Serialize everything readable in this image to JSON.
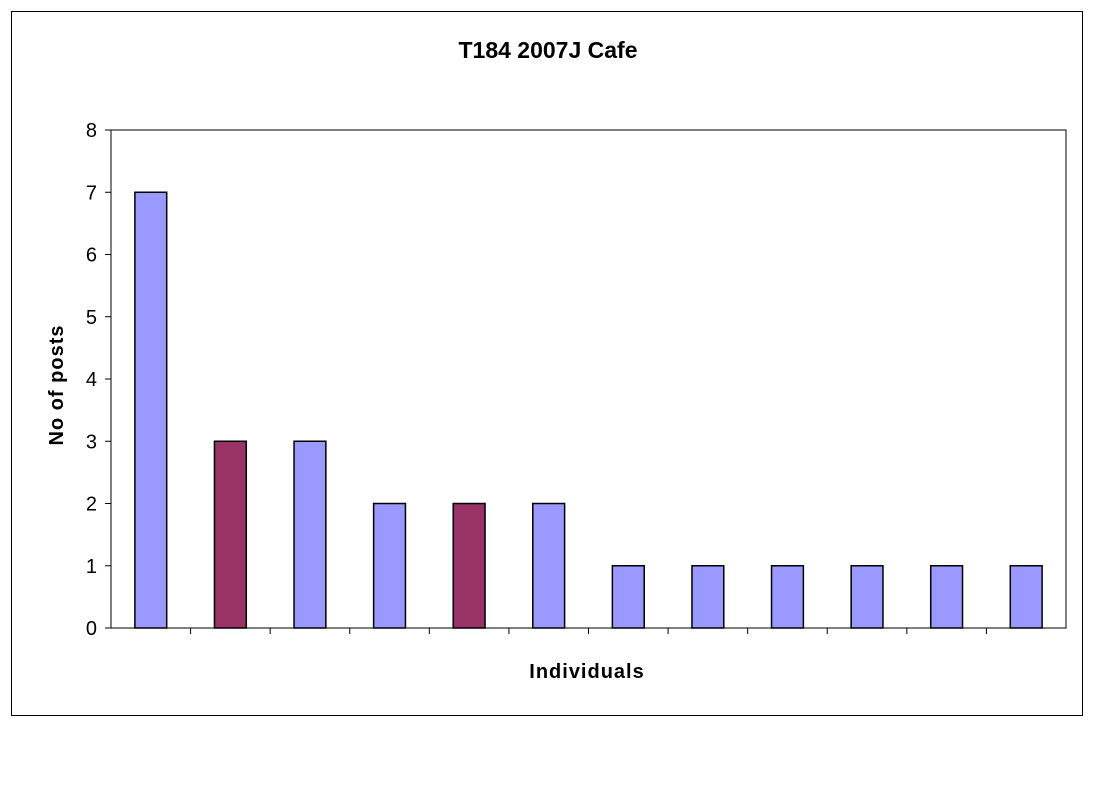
{
  "chart_data": {
    "type": "bar",
    "title": "T184 2007J Cafe",
    "xlabel": "Individuals",
    "ylabel": "No of posts",
    "ylim": [
      0,
      8
    ],
    "yticks": [
      0,
      1,
      2,
      3,
      4,
      5,
      6,
      7,
      8
    ],
    "categories": [
      "",
      "",
      "",
      "",
      "",
      "",
      "",
      "",
      "",
      "",
      "",
      ""
    ],
    "values": [
      7,
      3,
      3,
      2,
      2,
      2,
      1,
      1,
      1,
      1,
      1,
      1
    ],
    "bar_colors": [
      "#9999ff",
      "#993366",
      "#9999ff",
      "#9999ff",
      "#993366",
      "#9999ff",
      "#9999ff",
      "#9999ff",
      "#9999ff",
      "#9999ff",
      "#9999ff",
      "#9999ff"
    ],
    "grid": false,
    "legend": "none"
  }
}
